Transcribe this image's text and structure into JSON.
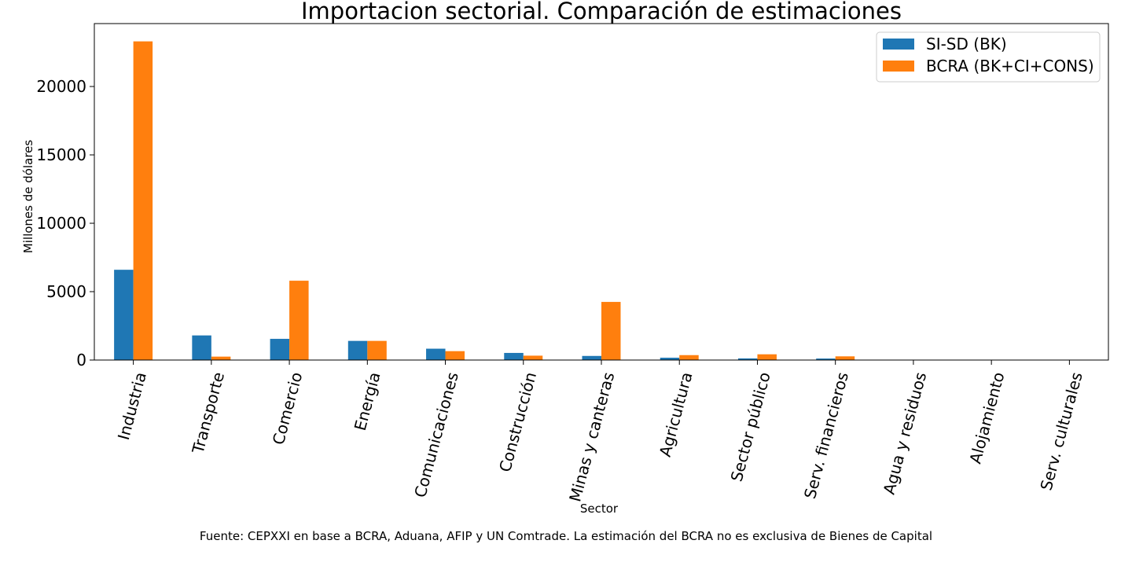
{
  "chart_data": {
    "type": "bar",
    "title": "Importacion sectorial. Comparación de estimaciones",
    "xlabel": "Sector",
    "ylabel": "Millones de dólares",
    "ylim": [
      0,
      24600
    ],
    "yticks": [
      0,
      5000,
      10000,
      15000,
      20000
    ],
    "grid": false,
    "legend_position": "top-right",
    "categories": [
      "Industria",
      "Transporte",
      "Comercio",
      "Energía",
      "Comunicaciones",
      "Construcción",
      "Minas y canteras",
      "Agricultura",
      "Sector público",
      "Serv. financieros",
      "Agua y residuos",
      "Alojamiento",
      "Serv. culturales"
    ],
    "series": [
      {
        "name": "SI-SD (BK)",
        "color": "#1f77b4",
        "values": [
          6600,
          1800,
          1550,
          1400,
          830,
          520,
          300,
          170,
          120,
          110,
          8,
          5,
          3
        ]
      },
      {
        "name": "BCRA (BK+CI+CONS)",
        "color": "#ff7f0e",
        "values": [
          23300,
          250,
          5800,
          1400,
          650,
          320,
          4250,
          360,
          420,
          270,
          15,
          10,
          8
        ]
      }
    ]
  },
  "footnote": "Fuente: CEPXXI en base a BCRA, Aduana, AFIP y UN Comtrade. La estimación del BCRA no es exclusiva de Bienes de Capital"
}
